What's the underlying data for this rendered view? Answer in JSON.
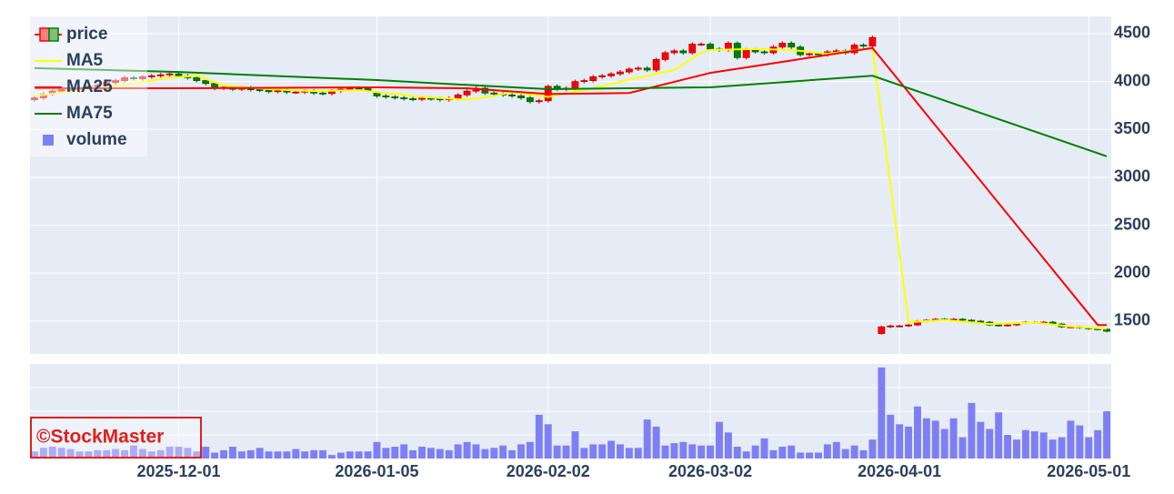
{
  "chart_data": {
    "type": "candlestick",
    "watermark": "©StockMaster",
    "x": [
      "2025-11-06",
      "2025-11-07",
      "2025-11-10",
      "2025-11-11",
      "2025-11-12",
      "2025-11-13",
      "2025-11-14",
      "2025-11-17",
      "2025-11-18",
      "2025-11-19",
      "2025-11-20",
      "2025-11-21",
      "2025-11-25",
      "2025-11-26",
      "2025-11-27",
      "2025-11-28",
      "2025-12-01",
      "2025-12-02",
      "2025-12-03",
      "2025-12-04",
      "2025-12-05",
      "2025-12-08",
      "2025-12-09",
      "2025-12-10",
      "2025-12-11",
      "2025-12-12",
      "2025-12-15",
      "2025-12-16",
      "2025-12-17",
      "2025-12-18",
      "2025-12-19",
      "2025-12-22",
      "2025-12-23",
      "2025-12-24",
      "2025-12-25",
      "2025-12-26",
      "2025-12-29",
      "2025-12-30",
      "2026-01-05",
      "2026-01-06",
      "2026-01-07",
      "2026-01-08",
      "2026-01-09",
      "2026-01-13",
      "2026-01-14",
      "2026-01-15",
      "2026-01-16",
      "2026-01-19",
      "2026-01-20",
      "2026-01-21",
      "2026-01-22",
      "2026-01-23",
      "2026-01-26",
      "2026-01-27",
      "2026-01-28",
      "2026-01-29",
      "2026-01-30",
      "2026-02-02",
      "2026-02-03",
      "2026-02-04",
      "2026-02-05",
      "2026-02-06",
      "2026-02-09",
      "2026-02-10",
      "2026-02-12",
      "2026-02-13",
      "2026-02-16",
      "2026-02-17",
      "2026-02-18",
      "2026-02-19",
      "2026-02-20",
      "2026-02-24",
      "2026-02-25",
      "2026-02-26",
      "2026-02-27",
      "2026-03-02",
      "2026-03-03",
      "2026-03-04",
      "2026-03-05",
      "2026-03-06",
      "2026-03-09",
      "2026-03-10",
      "2026-03-11",
      "2026-03-12",
      "2026-03-13",
      "2026-03-16",
      "2026-03-17",
      "2026-03-18",
      "2026-03-19",
      "2026-03-23",
      "2026-03-24",
      "2026-03-25",
      "2026-03-26",
      "2026-03-27",
      "2026-03-30",
      "2026-03-31",
      "2026-04-01",
      "2026-04-02",
      "2026-04-03",
      "2026-04-06",
      "2026-04-07",
      "2026-04-08",
      "2026-04-09",
      "2026-04-10",
      "2026-04-13",
      "2026-04-14",
      "2026-04-15",
      "2026-04-16",
      "2026-04-17",
      "2026-04-20",
      "2026-04-21",
      "2026-04-22",
      "2026-04-23",
      "2026-04-24",
      "2026-04-27",
      "2026-04-28",
      "2026-04-30",
      "2026-05-01",
      "2026-05-07",
      "2026-05-08"
    ],
    "xticks": [
      "2025-12-01",
      "2026-01-05",
      "2026-02-02",
      "2026-03-02",
      "2026-04-01",
      "2026-05-01"
    ],
    "ylim": [
      1158,
      4680
    ],
    "yticks": [
      1500,
      2000,
      2500,
      3000,
      3500,
      4000,
      4500
    ],
    "grid": true,
    "legend": "top-left",
    "series": [
      {
        "name": "price",
        "type": "candlestick",
        "increasing_color": "#ff0000",
        "decreasing_color": "#008000",
        "open": [
          3810,
          3830,
          3870,
          3900,
          3920,
          3905,
          3930,
          3950,
          3960,
          3990,
          4010,
          4040,
          4030,
          4050,
          4060,
          4070,
          4080,
          4060,
          4040,
          4010,
          3980,
          3930,
          3940,
          3920,
          3935,
          3915,
          3910,
          3895,
          3905,
          3890,
          3890,
          3900,
          3880,
          3875,
          3900,
          3920,
          3930,
          3925,
          3880,
          3850,
          3840,
          3830,
          3820,
          3815,
          3825,
          3820,
          3810,
          3825,
          3860,
          3900,
          3930,
          3880,
          3870,
          3860,
          3850,
          3830,
          3790,
          3800,
          3950,
          3920,
          3930,
          4000,
          4010,
          4050,
          4060,
          4080,
          4100,
          4130,
          4140,
          4120,
          4230,
          4300,
          4320,
          4300,
          4390,
          4390,
          4340,
          4330,
          4400,
          4250,
          4330,
          4310,
          4300,
          4360,
          4400,
          4360,
          4280,
          4290,
          4280,
          4310,
          4320,
          4300,
          4380,
          4370,
          1370,
          1440,
          1450,
          1450,
          1460,
          1500,
          1510,
          1520,
          1515,
          1520,
          1510,
          1500,
          1490,
          1460,
          1455,
          1460,
          1480,
          1490,
          1485,
          1490,
          1470,
          1440,
          1440,
          1430,
          1420,
          1415
        ],
        "high": [
          3850,
          3890,
          3920,
          3940,
          3940,
          3950,
          3970,
          3980,
          4010,
          4030,
          4060,
          4060,
          4070,
          4080,
          4090,
          4100,
          4100,
          4080,
          4060,
          4030,
          4000,
          3960,
          3960,
          3955,
          3955,
          3935,
          3930,
          3925,
          3925,
          3910,
          3920,
          3920,
          3900,
          3920,
          3940,
          3950,
          3950,
          3945,
          3900,
          3870,
          3860,
          3850,
          3840,
          3845,
          3845,
          3840,
          3845,
          3880,
          3920,
          3950,
          3950,
          3900,
          3890,
          3880,
          3870,
          3850,
          3820,
          3970,
          3970,
          3950,
          4020,
          4030,
          4070,
          4080,
          4100,
          4120,
          4150,
          4160,
          4160,
          4250,
          4320,
          4340,
          4340,
          4410,
          4410,
          4410,
          4360,
          4420,
          4420,
          4350,
          4350,
          4330,
          4380,
          4420,
          4420,
          4380,
          4310,
          4310,
          4330,
          4340,
          4340,
          4400,
          4400,
          4480,
          1455,
          1462,
          1462,
          1472,
          1512,
          1522,
          1532,
          1532,
          1532,
          1532,
          1522,
          1512,
          1502,
          1472,
          1472,
          1492,
          1502,
          1502,
          1502,
          1502,
          1482,
          1452,
          1452,
          1442,
          1432,
          1427
        ],
        "low": [
          3790,
          3810,
          3850,
          3880,
          3885,
          3885,
          3910,
          3930,
          3940,
          3970,
          3990,
          4010,
          4010,
          4030,
          4040,
          4050,
          4040,
          4020,
          3990,
          3960,
          3910,
          3910,
          3900,
          3900,
          3895,
          3890,
          3875,
          3875,
          3870,
          3870,
          3870,
          3860,
          3855,
          3855,
          3880,
          3900,
          3905,
          3890,
          3830,
          3820,
          3810,
          3800,
          3795,
          3795,
          3800,
          3790,
          3790,
          3805,
          3840,
          3880,
          3860,
          3850,
          3840,
          3830,
          3810,
          3770,
          3770,
          3780,
          3900,
          3900,
          3910,
          3980,
          3990,
          4030,
          4040,
          4060,
          4080,
          4110,
          4100,
          4100,
          4210,
          4280,
          4280,
          4280,
          4370,
          4320,
          4310,
          4310,
          4230,
          4230,
          4290,
          4280,
          4280,
          4340,
          4340,
          4260,
          4260,
          4260,
          4260,
          4290,
          4280,
          4280,
          4350,
          4350,
          1360,
          1428,
          1438,
          1438,
          1448,
          1488,
          1498,
          1503,
          1503,
          1498,
          1488,
          1478,
          1448,
          1443,
          1443,
          1448,
          1468,
          1473,
          1473,
          1458,
          1428,
          1428,
          1418,
          1408,
          1403,
          1383
        ],
        "close": [
          3830,
          3870,
          3900,
          3920,
          3905,
          3930,
          3950,
          3960,
          3990,
          4010,
          4040,
          4030,
          4050,
          4060,
          4070,
          4080,
          4060,
          4040,
          4010,
          3980,
          3930,
          3940,
          3920,
          3935,
          3915,
          3910,
          3895,
          3905,
          3890,
          3890,
          3900,
          3880,
          3875,
          3900,
          3920,
          3930,
          3925,
          3910,
          3850,
          3840,
          3830,
          3820,
          3815,
          3825,
          3820,
          3810,
          3825,
          3860,
          3900,
          3930,
          3880,
          3870,
          3860,
          3850,
          3830,
          3790,
          3800,
          3950,
          3920,
          3930,
          4000,
          4010,
          4050,
          4060,
          4080,
          4100,
          4130,
          4140,
          4120,
          4230,
          4300,
          4320,
          4300,
          4390,
          4390,
          4340,
          4330,
          4400,
          4250,
          4330,
          4310,
          4300,
          4360,
          4400,
          4360,
          4280,
          4290,
          4280,
          4310,
          4320,
          4300,
          4380,
          4370,
          4460,
          1440,
          1450,
          1450,
          1460,
          1500,
          1510,
          1520,
          1515,
          1520,
          1510,
          1500,
          1490,
          1460,
          1455,
          1460,
          1480,
          1490,
          1485,
          1490,
          1470,
          1440,
          1440,
          1430,
          1420,
          1415,
          1395
        ]
      },
      {
        "name": "MA5",
        "type": "line",
        "color": "#ffff00",
        "x": [
          "2025-11-06",
          "2025-11-14",
          "2025-11-21",
          "2025-11-28",
          "2025-12-03",
          "2025-12-08",
          "2025-12-15",
          "2025-12-22",
          "2025-12-29",
          "2026-01-05",
          "2026-01-13",
          "2026-01-20",
          "2026-01-23",
          "2026-01-27",
          "2026-02-02",
          "2026-02-09",
          "2026-02-16",
          "2026-02-24",
          "2026-02-27",
          "2026-03-02",
          "2026-03-09",
          "2026-03-13",
          "2026-03-19",
          "2026-03-27",
          "2026-04-02",
          "2026-04-08",
          "2026-04-15",
          "2026-04-22",
          "2026-04-28",
          "2026-05-08"
        ],
        "values": [
          3850,
          3920,
          3980,
          4040,
          4060,
          3960,
          3920,
          3900,
          3910,
          3890,
          3840,
          3810,
          3850,
          3890,
          3840,
          3930,
          4020,
          4120,
          4300,
          4330,
          4340,
          4330,
          4290,
          4350,
          1490,
          1510,
          1470,
          1485,
          1445,
          1420
        ]
      },
      {
        "name": "MA25",
        "type": "line",
        "color": "#ff0000",
        "x": [
          "2025-11-06",
          "2025-12-01",
          "2026-01-05",
          "2026-01-20",
          "2026-02-02",
          "2026-02-16",
          "2026-03-02",
          "2026-03-13",
          "2026-03-27",
          "2026-05-07",
          "2026-05-08"
        ],
        "values": [
          3930,
          3930,
          3940,
          3930,
          3870,
          3880,
          4090,
          4220,
          4350,
          1460,
          1460
        ]
      },
      {
        "name": "MA75",
        "type": "line",
        "color": "#008000",
        "x": [
          "2025-11-06",
          "2025-12-01",
          "2026-01-05",
          "2026-02-02",
          "2026-03-02",
          "2026-03-27",
          "2026-05-08"
        ],
        "values": [
          4140,
          4100,
          4015,
          3920,
          3940,
          4060,
          3220
        ]
      },
      {
        "name": "volume",
        "type": "bar",
        "color": "#7f7ff5",
        "ylim": [
          0,
          4
        ],
        "gridlines": [
          1,
          2,
          3
        ],
        "values": [
          0.3,
          0.45,
          0.5,
          0.45,
          0.4,
          0.3,
          0.3,
          0.35,
          0.35,
          0.4,
          0.35,
          0.55,
          0.4,
          0.3,
          0.35,
          0.5,
          0.5,
          0.45,
          0.3,
          0.5,
          0.25,
          0.35,
          0.5,
          0.3,
          0.35,
          0.45,
          0.3,
          0.3,
          0.3,
          0.4,
          0.3,
          0.35,
          0.35,
          0.15,
          0.25,
          0.3,
          0.3,
          0.3,
          0.7,
          0.45,
          0.5,
          0.6,
          0.35,
          0.5,
          0.45,
          0.4,
          0.35,
          0.6,
          0.7,
          0.6,
          0.4,
          0.45,
          0.55,
          0.35,
          0.6,
          0.7,
          1.85,
          1.45,
          0.55,
          0.55,
          1.15,
          0.45,
          0.6,
          0.6,
          0.75,
          0.6,
          0.45,
          0.45,
          1.65,
          1.35,
          0.55,
          0.65,
          0.7,
          0.6,
          0.55,
          0.55,
          1.55,
          1.1,
          0.5,
          0.3,
          0.55,
          0.85,
          0.35,
          0.5,
          0.55,
          0.25,
          0.25,
          0.25,
          0.6,
          0.7,
          0.4,
          0.55,
          0.35,
          0.8,
          3.85,
          1.85,
          1.45,
          1.35,
          2.2,
          1.7,
          1.6,
          1.25,
          1.7,
          0.9,
          2.35,
          1.55,
          1.25,
          1.95,
          1.0,
          0.8,
          1.2,
          1.15,
          1.1,
          0.8,
          0.9,
          1.6,
          1.4,
          0.9,
          1.2,
          2.0
        ]
      }
    ]
  }
}
